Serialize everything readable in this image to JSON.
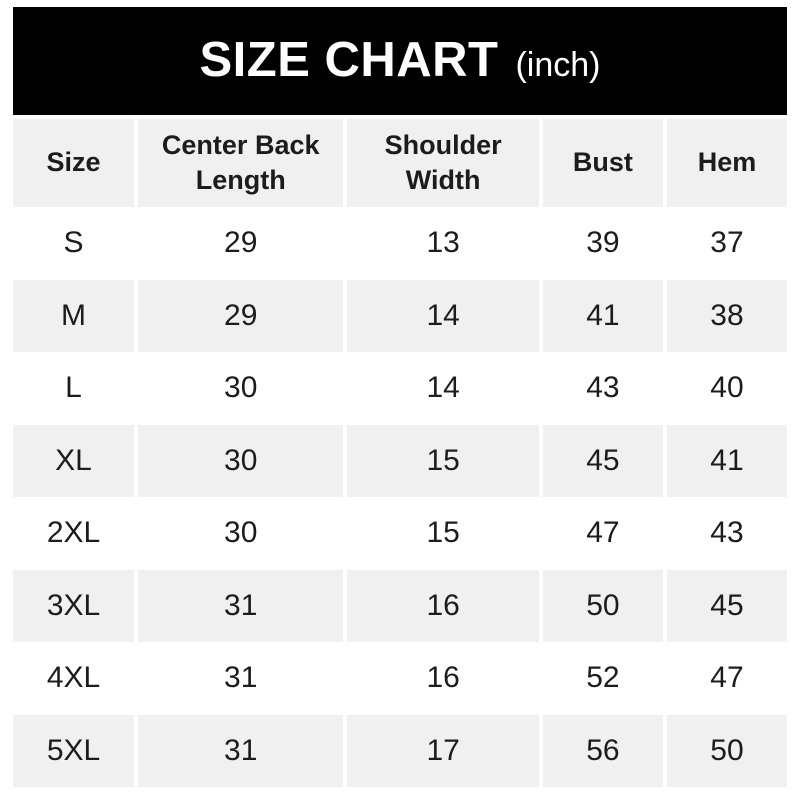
{
  "banner": {
    "title": "SIZE CHART",
    "unit": "(inch)"
  },
  "colors": {
    "banner_bg": "#000000",
    "banner_text": "#ffffff",
    "cell_alt_bg": "#f0f0f1",
    "cell_bg": "#ffffff",
    "text": "#1c1c1e"
  },
  "table": {
    "columns": [
      "Size",
      "Center Back Length",
      "Shoulder Width",
      "Bust",
      "Hem"
    ],
    "rows": [
      {
        "cells": [
          "S",
          "29",
          "13",
          "39",
          "37"
        ]
      },
      {
        "cells": [
          "M",
          "29",
          "14",
          "41",
          "38"
        ]
      },
      {
        "cells": [
          "L",
          "30",
          "14",
          "43",
          "40"
        ]
      },
      {
        "cells": [
          "XL",
          "30",
          "15",
          "45",
          "41"
        ]
      },
      {
        "cells": [
          "2XL",
          "30",
          "15",
          "47",
          "43"
        ]
      },
      {
        "cells": [
          "3XL",
          "31",
          "16",
          "50",
          "45"
        ]
      },
      {
        "cells": [
          "4XL",
          "31",
          "16",
          "52",
          "47"
        ]
      },
      {
        "cells": [
          "5XL",
          "31",
          "17",
          "56",
          "50"
        ]
      }
    ]
  },
  "chart_data": {
    "type": "table",
    "title": "SIZE CHART (inch)",
    "unit": "inch",
    "columns": [
      "Size",
      "Center Back Length",
      "Shoulder Width",
      "Bust",
      "Hem"
    ],
    "rows": [
      [
        "S",
        29,
        13,
        39,
        37
      ],
      [
        "M",
        29,
        14,
        41,
        38
      ],
      [
        "L",
        30,
        14,
        43,
        40
      ],
      [
        "XL",
        30,
        15,
        45,
        41
      ],
      [
        "2XL",
        30,
        15,
        47,
        43
      ],
      [
        "3XL",
        31,
        16,
        50,
        45
      ],
      [
        "4XL",
        31,
        16,
        52,
        47
      ],
      [
        "5XL",
        31,
        17,
        56,
        50
      ]
    ]
  }
}
